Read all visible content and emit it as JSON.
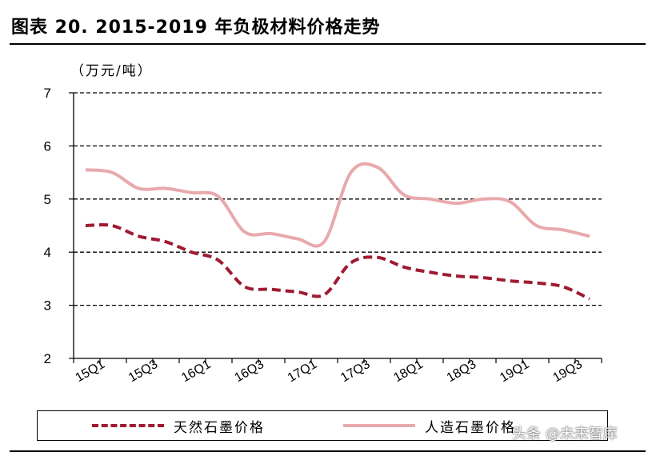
{
  "header": {
    "title": "图表 20. 2015-2019 年负极材料价格走势"
  },
  "watermark": "头条 @未来智库",
  "chart_data": {
    "type": "line",
    "unit_label": "（万元/吨）",
    "ylim": [
      2,
      7
    ],
    "yticks": [
      2,
      3,
      4,
      5,
      6,
      7
    ],
    "grid": "dashed-horizontal",
    "legend_position": "bottom",
    "tick_labels": [
      "15Q1",
      "15Q3",
      "16Q1",
      "16Q3",
      "17Q1",
      "17Q3",
      "18Q1",
      "18Q3",
      "19Q1",
      "19Q3"
    ],
    "categories": [
      "15Q1",
      "15Q2",
      "15Q3",
      "15Q4",
      "16Q1",
      "16Q2",
      "16Q3",
      "16Q4",
      "17Q1",
      "17Q2",
      "17Q3",
      "17Q4",
      "18Q1",
      "18Q2",
      "18Q3",
      "18Q4",
      "19Q1",
      "19Q2",
      "19Q3",
      "19Q4"
    ],
    "series": [
      {
        "name": "天然石墨价格",
        "color": "#9e1b32",
        "style": "dashed",
        "values": [
          4.5,
          4.5,
          4.3,
          4.2,
          4.0,
          3.85,
          3.35,
          3.3,
          3.25,
          3.2,
          3.8,
          3.9,
          3.72,
          3.62,
          3.55,
          3.52,
          3.46,
          3.42,
          3.35,
          3.12
        ]
      },
      {
        "name": "人造石墨价格",
        "color": "#e8a9ad",
        "style": "solid",
        "values": [
          5.55,
          5.5,
          5.2,
          5.2,
          5.12,
          5.05,
          4.38,
          4.35,
          4.25,
          4.2,
          5.5,
          5.6,
          5.08,
          5.0,
          4.92,
          5.0,
          4.95,
          4.5,
          4.42,
          4.3
        ]
      }
    ]
  }
}
